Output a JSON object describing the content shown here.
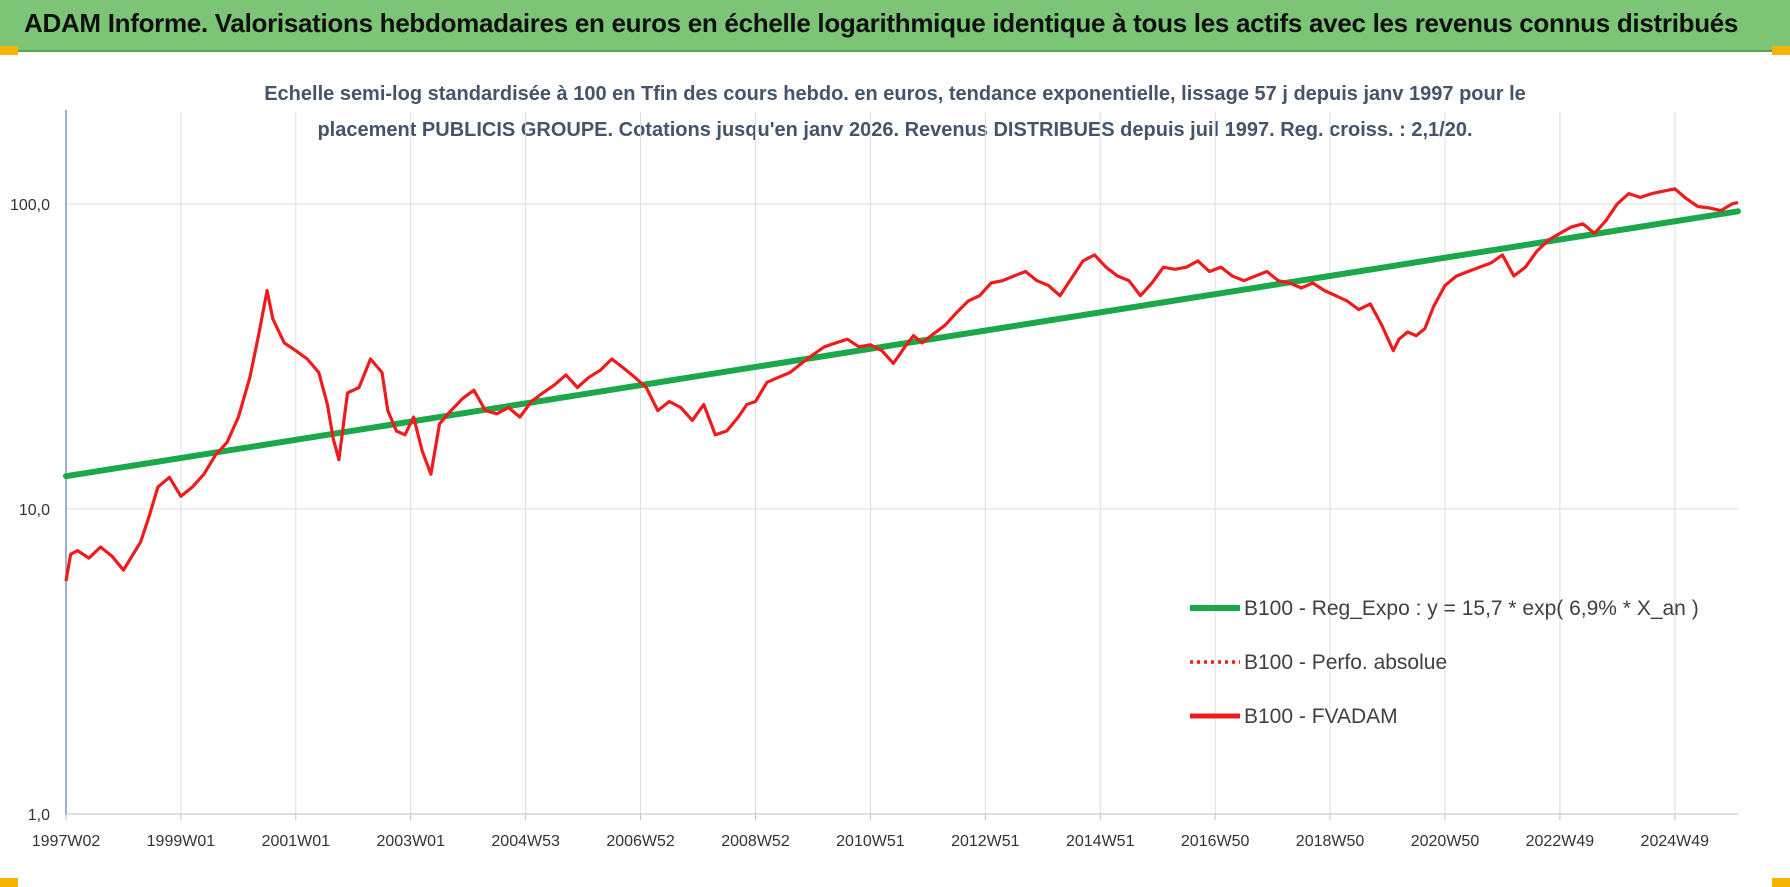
{
  "header": {
    "title": "ADAM Informe. Valorisations hebdomadaires en euros en échelle logarithmique identique à tous les actifs avec les revenus connus distribués"
  },
  "colors": {
    "header_bg": "#7cc576",
    "regression": "#1aa84a",
    "fvadam": "#ee1c1c",
    "perfo": "#ee1c1c",
    "subtitle": "#44546a",
    "corner_accent": "#f5b400"
  },
  "chart_data": {
    "type": "line",
    "subtitle_lines": [
      "Echelle semi-log standardisée à 100 en Tfin des cours hebdo. en euros, tendance exponentielle, lissage 57 j depuis janv 1997 pour le",
      "placement PUBLICIS  GROUPE. Cotations jusqu'en janv 2026. Revenus DISTRIBUES depuis juil 1997. Reg.  croiss. : 2,1/20."
    ],
    "y_scale": "log",
    "ylim": [
      1,
      200
    ],
    "y_ticks": [
      {
        "value": 1,
        "label": "1,0"
      },
      {
        "value": 10,
        "label": "10,0"
      },
      {
        "value": 100,
        "label": "100,0"
      }
    ],
    "x_range": [
      1997.0,
      2026.1
    ],
    "x_ticks": [
      {
        "value": 1997.0,
        "label": "1997W02"
      },
      {
        "value": 1999.0,
        "label": "1999W01"
      },
      {
        "value": 2001.0,
        "label": "2001W01"
      },
      {
        "value": 2003.0,
        "label": "2003W01"
      },
      {
        "value": 2005.0,
        "label": "2004W53"
      },
      {
        "value": 2007.0,
        "label": "2006W52"
      },
      {
        "value": 2009.0,
        "label": "2008W52"
      },
      {
        "value": 2011.0,
        "label": "2010W51"
      },
      {
        "value": 2013.0,
        "label": "2012W51"
      },
      {
        "value": 2015.0,
        "label": "2014W51"
      },
      {
        "value": 2017.0,
        "label": "2016W50"
      },
      {
        "value": 2019.0,
        "label": "2018W50"
      },
      {
        "value": 2021.0,
        "label": "2020W50"
      },
      {
        "value": 2023.0,
        "label": "2022W49"
      },
      {
        "value": 2025.0,
        "label": "2024W49"
      }
    ],
    "grid": {
      "vertical": true,
      "horizontal": true
    },
    "legend_position": "bottom-right",
    "series": [
      {
        "name": "B100 - Reg_Expo : y = 15,7 * exp( 6,9% *  X_an )",
        "style": "solid-thick",
        "x": [
          1997.0,
          2026.1
        ],
        "y": [
          12.8,
          94.5
        ]
      },
      {
        "name": "B100 - Perfo. absolue",
        "style": "dotted",
        "x": [],
        "y": []
      },
      {
        "name": "B100 - FVADAM",
        "style": "solid",
        "x": [
          1997.0,
          1997.08,
          1997.2,
          1997.4,
          1997.6,
          1997.8,
          1998.0,
          1998.3,
          1998.45,
          1998.6,
          1998.8,
          1999.0,
          1999.2,
          1999.4,
          1999.6,
          1999.8,
          2000.0,
          2000.2,
          2000.35,
          2000.5,
          2000.6,
          2000.8,
          2001.0,
          2001.2,
          2001.4,
          2001.55,
          2001.65,
          2001.75,
          2001.9,
          2002.1,
          2002.3,
          2002.5,
          2002.6,
          2002.75,
          2002.9,
          2003.05,
          2003.2,
          2003.35,
          2003.5,
          2003.7,
          2003.9,
          2004.1,
          2004.3,
          2004.5,
          2004.7,
          2004.9,
          2005.1,
          2005.3,
          2005.5,
          2005.7,
          2005.9,
          2006.1,
          2006.3,
          2006.5,
          2006.7,
          2006.9,
          2007.1,
          2007.3,
          2007.5,
          2007.7,
          2007.9,
          2008.1,
          2008.3,
          2008.5,
          2008.7,
          2008.85,
          2009.0,
          2009.2,
          2009.4,
          2009.6,
          2009.8,
          2010.0,
          2010.2,
          2010.4,
          2010.6,
          2010.8,
          2011.0,
          2011.2,
          2011.4,
          2011.6,
          2011.75,
          2011.9,
          2012.1,
          2012.3,
          2012.5,
          2012.7,
          2012.9,
          2013.1,
          2013.3,
          2013.5,
          2013.7,
          2013.9,
          2014.1,
          2014.3,
          2014.5,
          2014.7,
          2014.9,
          2015.1,
          2015.3,
          2015.5,
          2015.7,
          2015.9,
          2016.1,
          2016.3,
          2016.5,
          2016.7,
          2016.9,
          2017.1,
          2017.3,
          2017.5,
          2017.7,
          2017.9,
          2018.1,
          2018.3,
          2018.5,
          2018.7,
          2018.9,
          2019.1,
          2019.3,
          2019.5,
          2019.7,
          2019.9,
          2020.1,
          2020.2,
          2020.35,
          2020.5,
          2020.65,
          2020.8,
          2021.0,
          2021.2,
          2021.4,
          2021.6,
          2021.8,
          2022.0,
          2022.2,
          2022.4,
          2022.6,
          2022.8,
          2023.0,
          2023.2,
          2023.4,
          2023.6,
          2023.8,
          2024.0,
          2024.2,
          2024.4,
          2024.6,
          2024.8,
          2025.0,
          2025.2,
          2025.4,
          2025.6,
          2025.8,
          2026.0,
          2026.1
        ],
        "y": [
          5.8,
          7.1,
          7.3,
          6.9,
          7.5,
          7.0,
          6.3,
          7.8,
          9.5,
          11.8,
          12.7,
          11.0,
          11.8,
          13.0,
          15.0,
          16.5,
          20.0,
          27.0,
          37.0,
          52.0,
          42.0,
          35.0,
          33.0,
          31.0,
          28.0,
          22.0,
          17.0,
          14.5,
          24.0,
          25.0,
          31.0,
          28.0,
          21.0,
          18.0,
          17.5,
          20.0,
          15.5,
          13.0,
          19.0,
          21.0,
          23.0,
          24.5,
          21.0,
          20.5,
          21.5,
          20.0,
          22.5,
          24.0,
          25.5,
          27.5,
          25.0,
          27.0,
          28.5,
          31.0,
          29.0,
          27.0,
          25.0,
          21.0,
          22.5,
          21.5,
          19.5,
          22.0,
          17.5,
          18.0,
          20.0,
          22.0,
          22.5,
          26.0,
          27.0,
          28.0,
          30.0,
          32.0,
          34.0,
          35.0,
          36.0,
          34.0,
          34.5,
          33.0,
          30.0,
          34.0,
          37.0,
          35.0,
          37.5,
          40.0,
          44.0,
          48.0,
          50.0,
          55.0,
          56.0,
          58.0,
          60.0,
          56.0,
          54.0,
          50.0,
          57.0,
          65.0,
          68.0,
          62.0,
          58.0,
          56.0,
          50.0,
          55.0,
          62.0,
          61.0,
          62.0,
          65.0,
          60.0,
          62.0,
          58.0,
          56.0,
          58.0,
          60.0,
          56.0,
          55.0,
          53.0,
          55.0,
          52.0,
          50.0,
          48.0,
          45.0,
          47.0,
          40.0,
          33.0,
          36.0,
          38.0,
          37.0,
          39.0,
          46.0,
          54.0,
          58.0,
          60.0,
          62.0,
          64.0,
          68.0,
          58.0,
          62.0,
          70.0,
          76.0,
          80.0,
          84.0,
          86.0,
          80.0,
          88.0,
          100.0,
          108.0,
          105.0,
          108.0,
          110.0,
          112.0,
          104.0,
          98.0,
          97.0,
          95.0,
          100.0,
          101.0
        ]
      }
    ]
  }
}
